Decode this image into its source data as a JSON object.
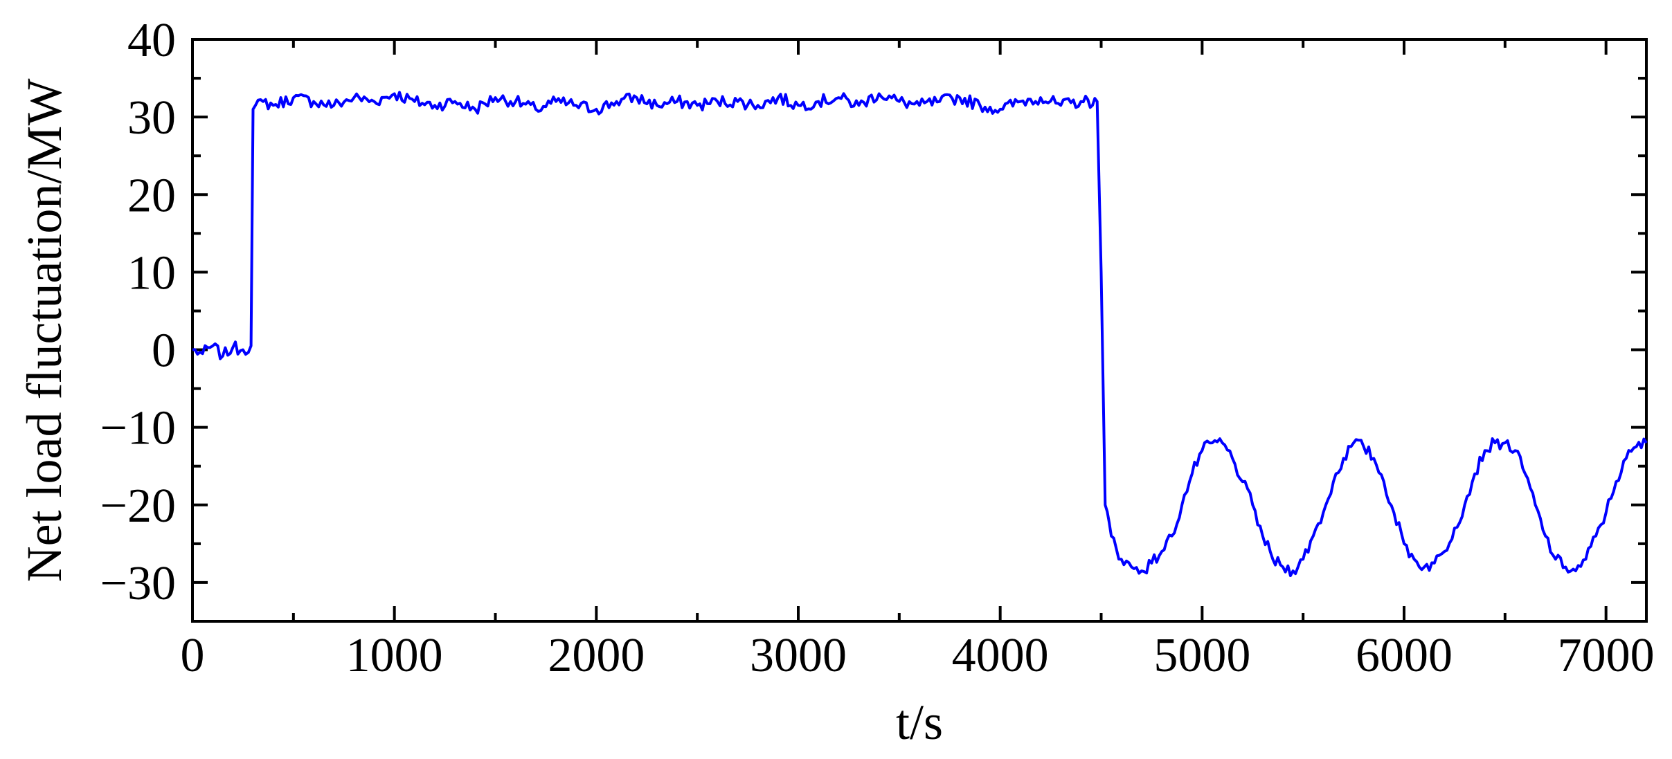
{
  "chart_data": {
    "type": "line",
    "title": "",
    "xlabel": "t/s",
    "ylabel": "Net load fluctuation/MW",
    "xlim": [
      0,
      7200
    ],
    "ylim": [
      -35,
      40
    ],
    "xticks": [
      0,
      1000,
      2000,
      3000,
      4000,
      5000,
      6000,
      7000
    ],
    "xtick_labels": [
      "0",
      "1000",
      "2000",
      "3000",
      "4000",
      "5000",
      "6000",
      "7000"
    ],
    "yticks": [
      -30,
      -20,
      -10,
      0,
      10,
      20,
      30,
      40
    ],
    "ytick_labels": [
      "−30",
      "−20",
      "−10",
      "0",
      "10",
      "20",
      "30",
      "40"
    ],
    "grid": false,
    "legend": "none",
    "line_color": "#0000ff",
    "series": [
      {
        "x": [
          0,
          50,
          100,
          150,
          200,
          250,
          290,
          300,
          350,
          400,
          500,
          600,
          700,
          800,
          900,
          1000,
          1100,
          1200,
          1300,
          1400,
          1500,
          1600,
          1700,
          1800,
          1900,
          2000,
          2100,
          2200,
          2300,
          2400,
          2500,
          2600,
          2700,
          2800,
          2900,
          3000,
          3100,
          3200,
          3300,
          3400,
          3500,
          3600,
          3700,
          3800,
          3900,
          4000,
          4100,
          4200,
          4300,
          4400,
          4480,
          4500,
          4520,
          4550,
          4600,
          4650,
          4700,
          4750,
          4800,
          4850,
          4900,
          4950,
          5000,
          5050,
          5100,
          5150,
          5200,
          5250,
          5300,
          5350,
          5400,
          5450,
          5500,
          5550,
          5600,
          5650,
          5700,
          5750,
          5800,
          5850,
          5900,
          5950,
          6000,
          6050,
          6100,
          6150,
          6200,
          6250,
          6300,
          6350,
          6400,
          6450,
          6500,
          6550,
          6600,
          6650,
          6700,
          6750,
          6800,
          6850,
          6900,
          6950,
          7000,
          7050,
          7100,
          7150,
          7200
        ],
        "y": [
          0,
          -0.5,
          0.5,
          -0.8,
          0.3,
          0,
          0.5,
          31,
          32,
          31.5,
          32.5,
          32,
          31.5,
          32.5,
          32,
          33,
          32,
          31.5,
          32,
          31,
          32.5,
          32,
          31,
          32,
          31.5,
          31,
          32,
          32.5,
          31.5,
          32,
          31.5,
          32,
          32,
          31.5,
          32.5,
          31.5,
          32,
          32.5,
          31.5,
          33,
          32,
          31.5,
          32,
          32.5,
          31.5,
          31,
          32,
          32.5,
          31.5,
          32,
          32,
          10,
          -20,
          -24,
          -27,
          -28,
          -28.5,
          -27.5,
          -26,
          -24,
          -20,
          -16,
          -13,
          -12,
          -12,
          -14,
          -17,
          -20,
          -24,
          -27,
          -28,
          -28.5,
          -27,
          -24,
          -21,
          -17,
          -14,
          -12,
          -12.5,
          -14,
          -17,
          -21,
          -25,
          -27,
          -28,
          -27.5,
          -26,
          -23,
          -20,
          -16,
          -13,
          -12,
          -12,
          -13,
          -16,
          -20,
          -24,
          -27,
          -28,
          -28.5,
          -27,
          -24,
          -21,
          -17,
          -14,
          -12.5,
          -12
        ]
      }
    ]
  }
}
